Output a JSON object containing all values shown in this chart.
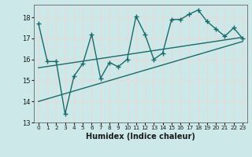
{
  "xlabel": "Humidex (Indice chaleur)",
  "background_color": "#cce8e8",
  "grid_color": "#e8d8d8",
  "line_color": "#1a6b6b",
  "xlim": [
    -0.5,
    23.5
  ],
  "ylim": [
    13.0,
    18.6
  ],
  "yticks": [
    13,
    14,
    15,
    16,
    17,
    18
  ],
  "xticks": [
    0,
    1,
    2,
    3,
    4,
    5,
    6,
    7,
    8,
    9,
    10,
    11,
    12,
    13,
    14,
    15,
    16,
    17,
    18,
    19,
    20,
    21,
    22,
    23
  ],
  "xtick_labels": [
    "0",
    "1",
    "2",
    "3",
    "4",
    "5",
    "6",
    "7",
    "8",
    "9",
    "10",
    "11",
    "12",
    "13",
    "14",
    "15",
    "16",
    "17",
    "18",
    "19",
    "20",
    "21",
    "22",
    "23"
  ],
  "line1_x": [
    0,
    1,
    2,
    3,
    4,
    5,
    6,
    7,
    8,
    9,
    10,
    11,
    12,
    13,
    14,
    15,
    16,
    17,
    18,
    19,
    20,
    21,
    22,
    23
  ],
  "line1_y": [
    17.7,
    15.9,
    15.9,
    13.4,
    15.2,
    15.8,
    17.2,
    15.1,
    15.85,
    15.65,
    16.0,
    18.05,
    17.2,
    16.0,
    16.3,
    17.9,
    17.9,
    18.15,
    18.35,
    17.8,
    17.45,
    17.1,
    17.5,
    17.0
  ],
  "line2_x": [
    0,
    23
  ],
  "line2_y": [
    15.6,
    17.05
  ],
  "line3_x": [
    0,
    23
  ],
  "line3_y": [
    14.0,
    16.85
  ],
  "marker": "+",
  "markersize": 4,
  "linewidth": 1.0
}
